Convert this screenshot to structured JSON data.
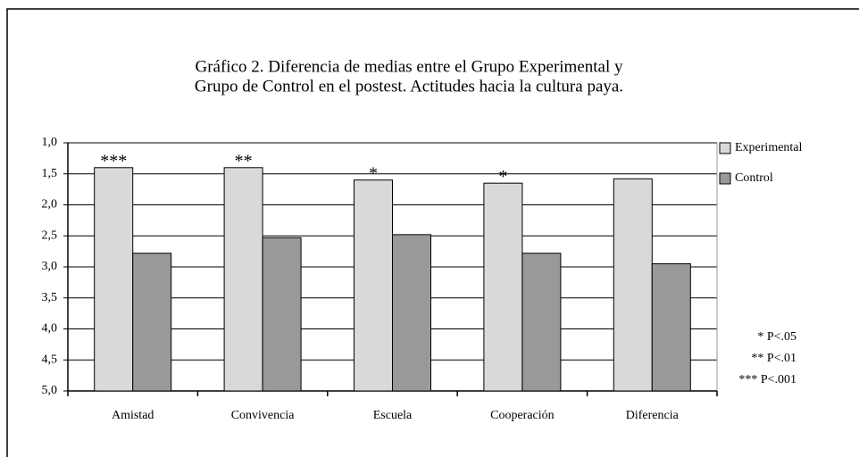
{
  "chart_data": {
    "type": "bar",
    "title": [
      "Gráfico 2. Diferencia de medias entre el Grupo Experimental y",
      "Grupo de Control en el postest. Actitudes hacia la cultura paya."
    ],
    "categories": [
      "Amistad",
      "Convivencia",
      "Escuela",
      "Cooperación",
      "Diferencia"
    ],
    "series": [
      {
        "name": "Experimental",
        "color": "#d9d9d9",
        "values": [
          1.4,
          1.4,
          1.6,
          1.65,
          1.58
        ]
      },
      {
        "name": "Control",
        "color": "#999999",
        "values": [
          2.78,
          2.53,
          2.48,
          2.78,
          2.95
        ]
      }
    ],
    "significance": [
      "***",
      "**",
      "*",
      "*",
      null
    ],
    "significance_notes": [
      "* P<.05",
      "** P<.01",
      "*** P<.001"
    ],
    "ylim": [
      1,
      5
    ],
    "y_inverted": true,
    "yticks": [
      {
        "value": 1,
        "label": "1,0"
      },
      {
        "value": 1.5,
        "label": "1,5"
      },
      {
        "value": 2,
        "label": "2,0"
      },
      {
        "value": 2.5,
        "label": "2,5"
      },
      {
        "value": 3,
        "label": "3,0"
      },
      {
        "value": 3.5,
        "label": "3,5"
      },
      {
        "value": 4,
        "label": "4,0"
      },
      {
        "value": 4.5,
        "label": "4,5"
      },
      {
        "value": 5,
        "label": "5,0"
      }
    ],
    "grid": true,
    "legend": "right"
  }
}
